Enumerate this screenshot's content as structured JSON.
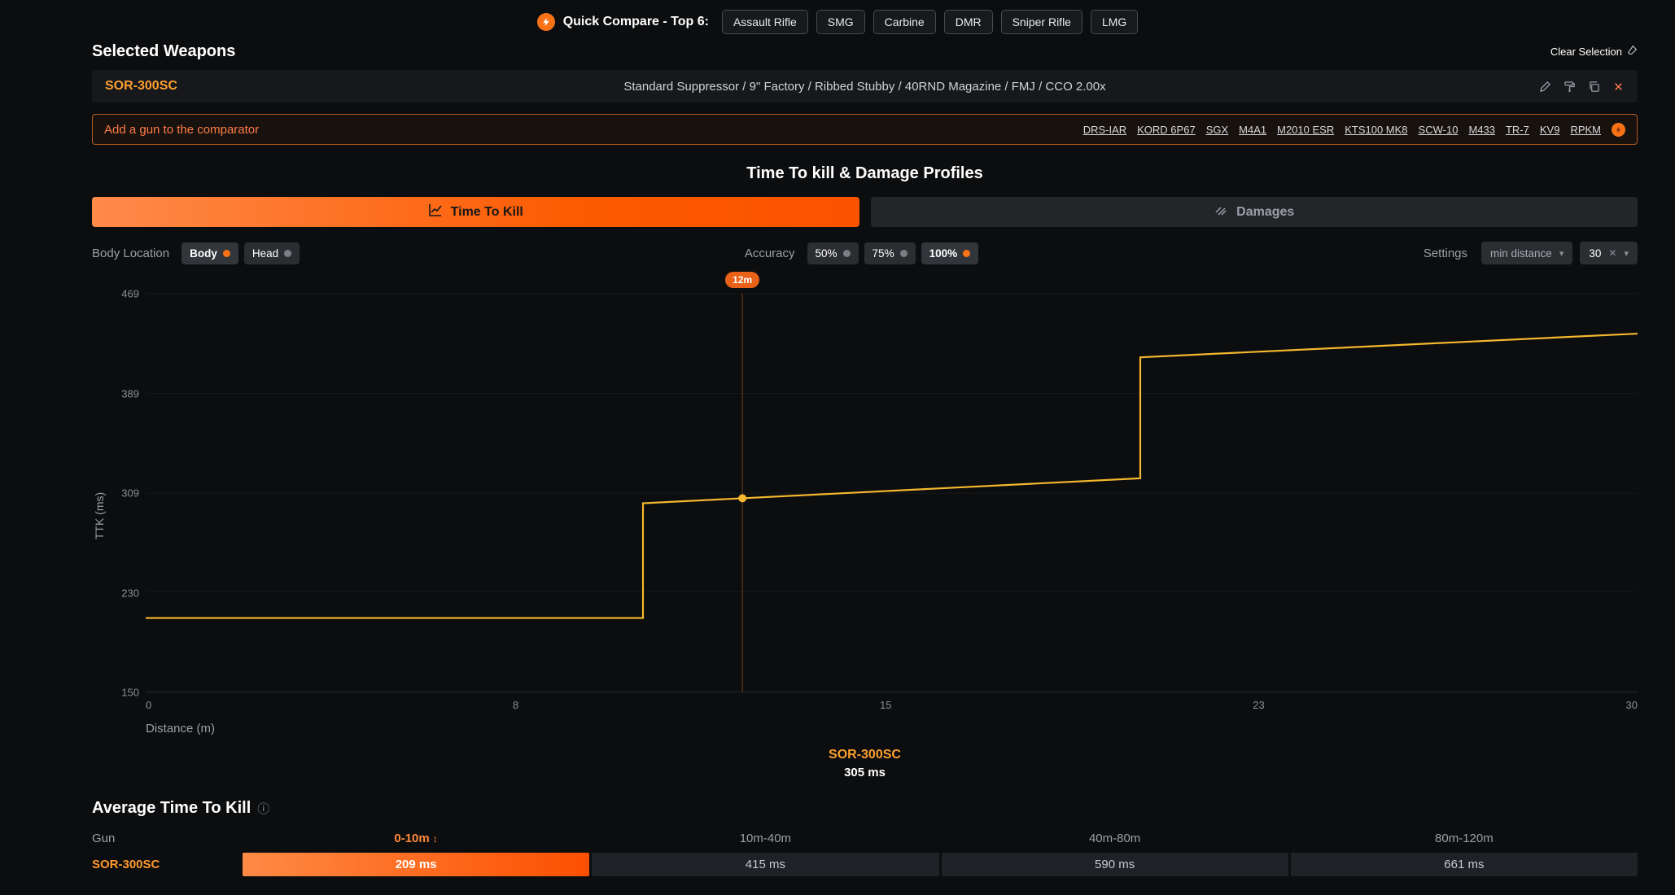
{
  "colors": {
    "accent": "#f97316",
    "line": "#f5b82e",
    "marker": "#ea6118"
  },
  "topbar": {
    "label": "Quick Compare - Top 6:",
    "categories": [
      "Assault Rifle",
      "SMG",
      "Carbine",
      "DMR",
      "Sniper Rifle",
      "LMG"
    ]
  },
  "selected": {
    "title": "Selected Weapons",
    "clear_label": "Clear Selection",
    "weapon_name": "SOR-300SC",
    "weapon_loadout": "Standard Suppressor / 9\" Factory / Ribbed Stubby / 40RND Magazine / FMJ / CCO 2.00x",
    "add_label": "Add a gun to the comparator",
    "quick_links": [
      "DRS-IAR",
      "KORD 6P67",
      "SGX",
      "M4A1",
      "M2010 ESR",
      "KTS100 MK8",
      "SCW-10",
      "M433",
      "TR-7",
      "KV9",
      "RPKM"
    ]
  },
  "profiles": {
    "title": "Time To kill & Damage Profiles",
    "tab_ttk": "Time To Kill",
    "tab_damages": "Damages",
    "body_location_label": "Body Location",
    "body_options": [
      {
        "label": "Body",
        "active": true
      },
      {
        "label": "Head",
        "active": false
      }
    ],
    "accuracy_label": "Accuracy",
    "accuracy_options": [
      {
        "label": "50%",
        "active": false
      },
      {
        "label": "75%",
        "active": false
      },
      {
        "label": "100%",
        "active": true
      }
    ],
    "settings_label": "Settings",
    "distance_mode": "min distance",
    "distance_value": "30",
    "tooltip_name": "SOR-300SC",
    "tooltip_value": "305 ms"
  },
  "chart_data": {
    "type": "line",
    "title": "Time To kill & Damage Profiles",
    "xlabel": "Distance (m)",
    "ylabel": "TTK (ms)",
    "xlim": [
      0,
      30
    ],
    "ylim": [
      150,
      469
    ],
    "x_ticks": [
      0,
      8,
      15,
      23,
      30
    ],
    "y_ticks": [
      150,
      230,
      309,
      389,
      469
    ],
    "grid": true,
    "series": [
      {
        "name": "SOR-300SC",
        "color": "#f5b82e",
        "points": [
          [
            0,
            209
          ],
          [
            10,
            209
          ],
          [
            10,
            301
          ],
          [
            20,
            321
          ],
          [
            20,
            418
          ],
          [
            30,
            437
          ]
        ]
      }
    ],
    "marker": {
      "x": 12,
      "y": 305,
      "label": "12m"
    }
  },
  "avg": {
    "title": "Average Time To Kill",
    "gun_header": "Gun",
    "columns": [
      "0-10m",
      "10m-40m",
      "40m-80m",
      "80m-120m"
    ],
    "rows": [
      {
        "gun": "SOR-300SC",
        "values": [
          "209 ms",
          "415 ms",
          "590 ms",
          "661 ms"
        ]
      }
    ]
  }
}
